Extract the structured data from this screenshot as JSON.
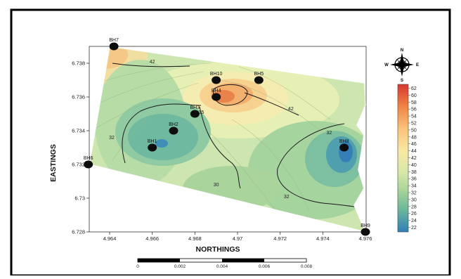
{
  "map": {
    "axes": {
      "x_label": "NORTHINGS",
      "y_label": "EASTINGS",
      "x_ticks": [
        "4.964",
        "4.966",
        "4.968",
        "4.97",
        "4.972",
        "4.974",
        "4.976"
      ],
      "y_ticks": [
        "6.728",
        "6.73",
        "6.732",
        "6.734",
        "6.736",
        "6.738"
      ]
    },
    "boreholes": [
      {
        "label": "BH7",
        "x": 4.9642,
        "y": 6.739
      },
      {
        "label": "BH10",
        "x": 4.969,
        "y": 6.737
      },
      {
        "label": "BH5",
        "x": 4.971,
        "y": 6.737
      },
      {
        "label": "BH4",
        "x": 4.969,
        "y": 6.736
      },
      {
        "label": "BH3",
        "x": 4.968,
        "y": 6.735
      },
      {
        "label": "BH2",
        "x": 4.967,
        "y": 6.734
      },
      {
        "label": "BH1",
        "x": 4.966,
        "y": 6.733
      },
      {
        "label": "BH6",
        "x": 4.963,
        "y": 6.732
      },
      {
        "label": "BH8",
        "x": 4.975,
        "y": 6.733
      },
      {
        "label": "BH9",
        "x": 4.976,
        "y": 6.728
      }
    ],
    "contour_labels": [
      {
        "text": "42",
        "x": 4.966,
        "y": 6.738
      },
      {
        "text": "42",
        "x": 4.9725,
        "y": 6.7352
      },
      {
        "text": "32",
        "x": 4.9641,
        "y": 6.7335
      },
      {
        "text": "32",
        "x": 4.9743,
        "y": 6.7338
      },
      {
        "text": "30",
        "x": 4.969,
        "y": 6.7307
      },
      {
        "text": "32",
        "x": 4.9723,
        "y": 6.73
      },
      {
        "text": "35",
        "x": 4.9683,
        "y": 6.735
      }
    ],
    "legend": {
      "values": [
        "62",
        "60",
        "58",
        "56",
        "54",
        "52",
        "50",
        "48",
        "46",
        "44",
        "42",
        "40",
        "38",
        "36",
        "34",
        "32",
        "30",
        "28",
        "26",
        "24",
        "22"
      ]
    },
    "compass": {
      "n": "N",
      "s": "S",
      "e": "E",
      "w": "W",
      "icon": "compass-rose-icon"
    },
    "scale_bar": {
      "labels": [
        "0",
        "0.002",
        "0.004",
        "0.006",
        "0.008"
      ]
    }
  }
}
